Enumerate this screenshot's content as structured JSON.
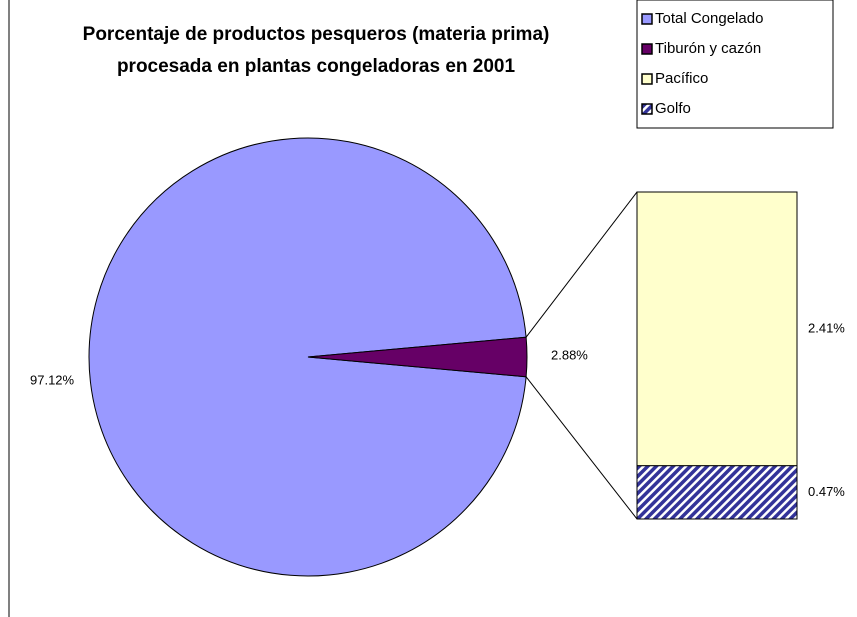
{
  "chart_data": {
    "type": "pie-of-bar",
    "title": [
      "Porcentaje de productos pesqueros (materia prima)",
      "procesada en plantas congeladoras en 2001"
    ],
    "categories": [
      "Total Congelado",
      "Tiburón y cazón"
    ],
    "values": [
      97.12,
      2.88
    ],
    "value_labels": [
      "97.12%",
      "2.88%"
    ],
    "colors": [
      "#9999ff",
      "#660066"
    ],
    "breakdown": {
      "categories": [
        "Pacífico",
        "Golfo"
      ],
      "values": [
        2.41,
        0.47
      ],
      "value_labels": [
        "2.41%",
        "0.47%"
      ],
      "colors": [
        "#ffffcc",
        "#333399"
      ],
      "hatched": [
        false,
        true
      ]
    },
    "legend": "top-right"
  }
}
